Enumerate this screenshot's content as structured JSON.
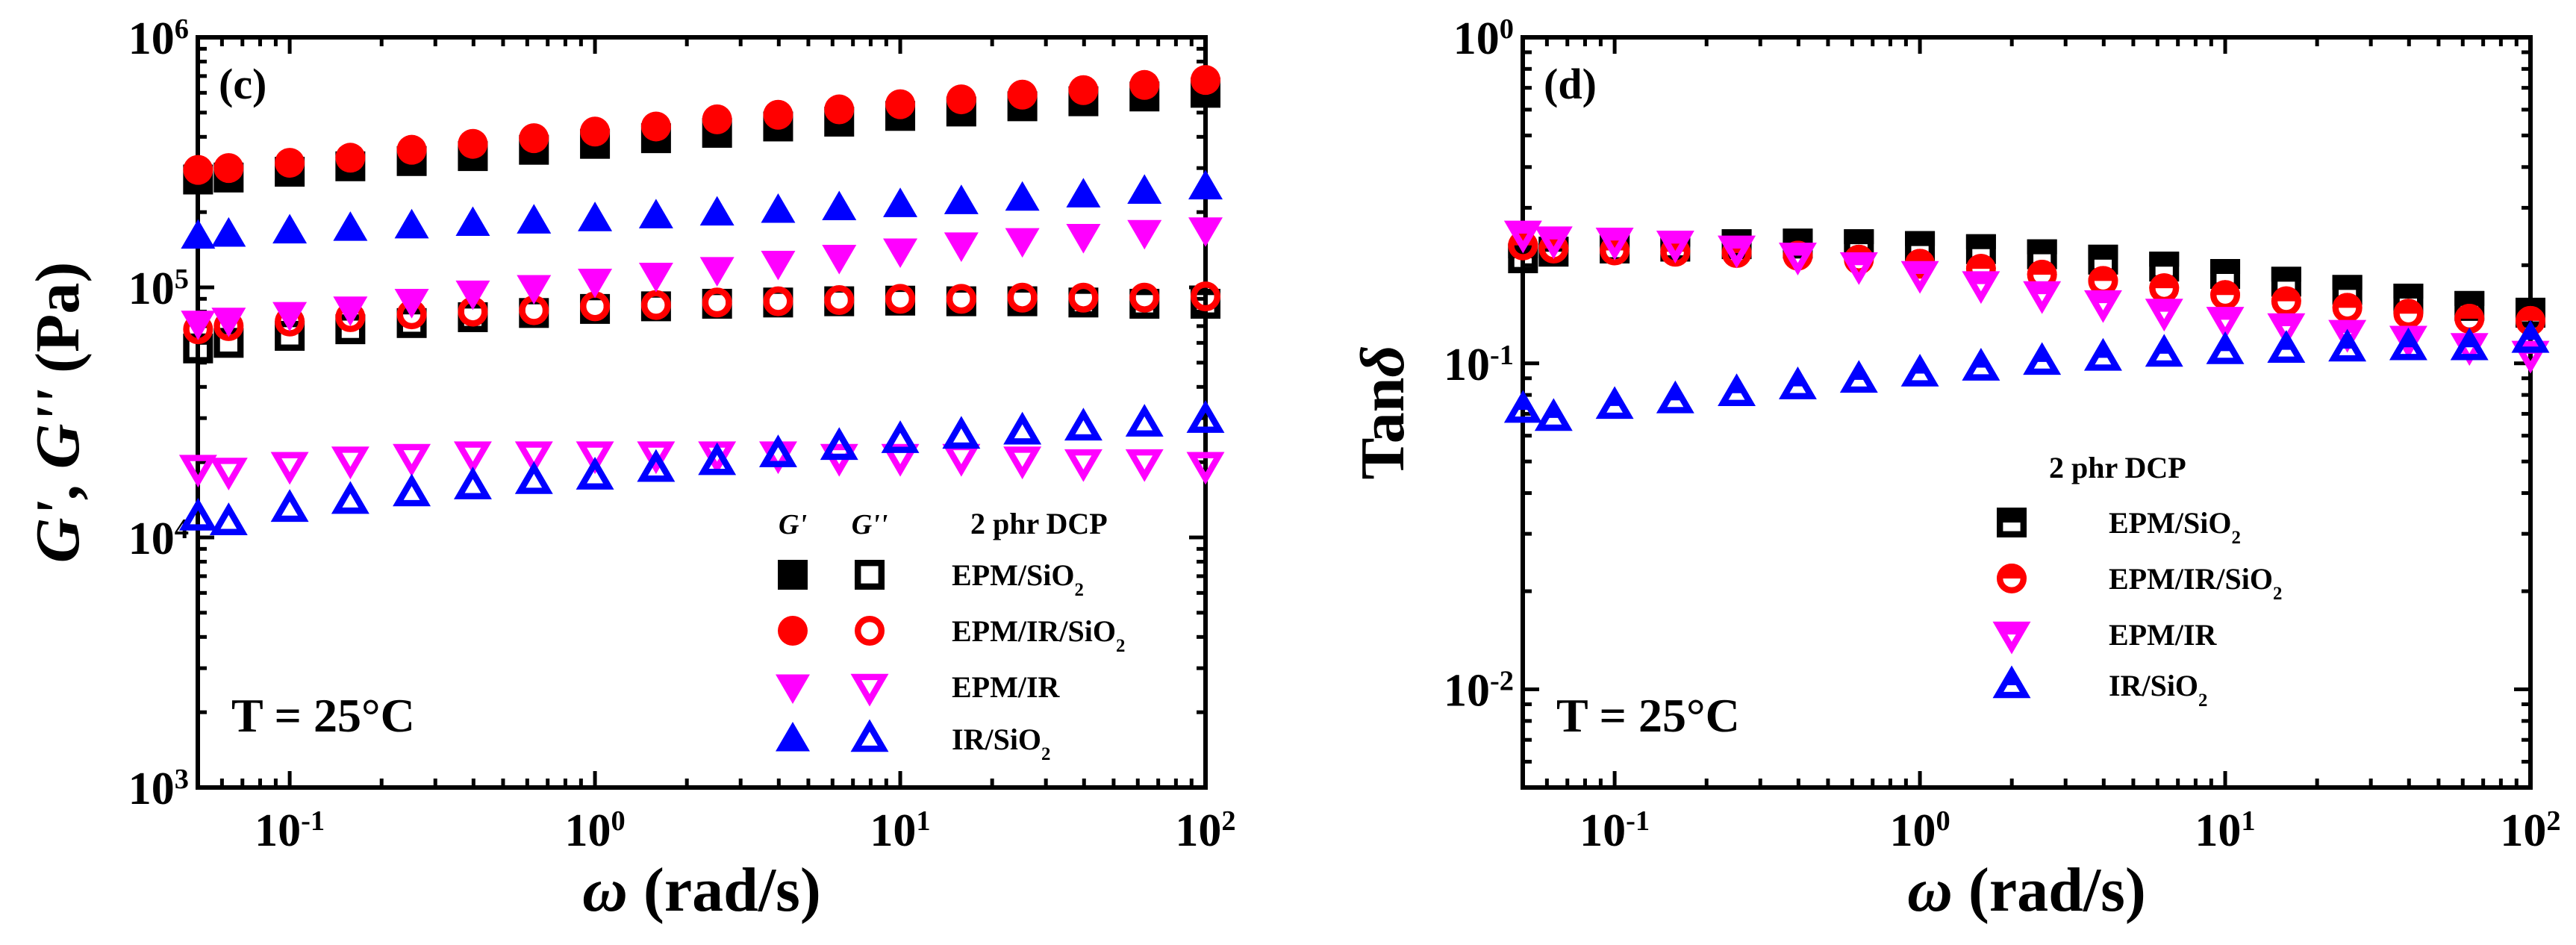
{
  "chart_data": [
    {
      "type": "scatter",
      "panel_label": "(c)",
      "xlabel": "ω (rad/s)",
      "ylabel": "G', G'' (Pa)",
      "x_scale": "log",
      "y_scale": "log",
      "xlim": [
        0.05,
        100
      ],
      "ylim": [
        1000,
        1000000
      ],
      "x_ticks": [
        {
          "base": "10",
          "exp": "-1",
          "value": 0.1
        },
        {
          "base": "10",
          "exp": "0",
          "value": 1
        },
        {
          "base": "10",
          "exp": "1",
          "value": 10
        },
        {
          "base": "10",
          "exp": "2",
          "value": 100
        }
      ],
      "y_ticks": [
        {
          "base": "10",
          "exp": "3",
          "value": 1000
        },
        {
          "base": "10",
          "exp": "4",
          "value": 10000
        },
        {
          "base": "10",
          "exp": "5",
          "value": 100000
        },
        {
          "base": "10",
          "exp": "6",
          "value": 1000000
        }
      ],
      "annotation": "T = 25°C",
      "legend": {
        "placement": "bottom-right",
        "col_headers": [
          "G'",
          "G''"
        ],
        "title": "2 phr DCP",
        "entries": [
          {
            "label": "EPM/SiO",
            "sub": "2"
          },
          {
            "label": "EPM/IR/SiO",
            "sub": "2"
          },
          {
            "label": "EPM/IR",
            "sub": ""
          },
          {
            "label": "IR/SiO",
            "sub": "2"
          }
        ]
      },
      "x": [
        0.0501,
        0.0631,
        0.1,
        0.158,
        0.251,
        0.398,
        0.631,
        1,
        1.585,
        2.512,
        3.981,
        6.31,
        10,
        15.85,
        25.12,
        39.81,
        63.1,
        100
      ],
      "series": [
        {
          "name": "EPM/SiO2 G'",
          "marker": "square",
          "fill": "solid",
          "color": "#000000",
          "values": [
            270000,
            275000,
            290000,
            305000,
            320000,
            335000,
            355000,
            375000,
            395000,
            415000,
            440000,
            460000,
            485000,
            505000,
            530000,
            555000,
            580000,
            600000
          ]
        },
        {
          "name": "EPM/SiO2 G''",
          "marker": "square",
          "fill": "open",
          "color": "#000000",
          "values": [
            57000,
            60000,
            64000,
            68000,
            72000,
            76000,
            79000,
            82000,
            84000,
            86000,
            87000,
            88000,
            88500,
            88000,
            88000,
            87000,
            86000,
            86000
          ]
        },
        {
          "name": "EPM/IR/SiO2 G'",
          "marker": "circle",
          "fill": "solid",
          "color": "#ff0000",
          "values": [
            295000,
            300000,
            315000,
            330000,
            355000,
            375000,
            395000,
            420000,
            440000,
            470000,
            490000,
            515000,
            540000,
            565000,
            590000,
            615000,
            645000,
            675000
          ]
        },
        {
          "name": "EPM/IR/SiO2 G''",
          "marker": "circle",
          "fill": "open",
          "color": "#ff0000",
          "values": [
            68000,
            70000,
            73000,
            76000,
            78000,
            80000,
            81000,
            84000,
            85000,
            87000,
            88000,
            89000,
            90000,
            90000,
            91000,
            91000,
            91000,
            92000
          ]
        },
        {
          "name": "EPM/IR G'",
          "marker": "triangle-down",
          "fill": "solid",
          "color": "#ff00ff",
          "values": [
            72000,
            74000,
            78000,
            82000,
            88000,
            95000,
            100000,
            106000,
            112000,
            118000,
            125000,
            132000,
            140000,
            148000,
            154000,
            160000,
            166000,
            170000
          ]
        },
        {
          "name": "EPM/IR G''",
          "marker": "triangle-down",
          "fill": "open",
          "color": "#ff00ff",
          "values": [
            19000,
            18500,
            19500,
            20500,
            21000,
            21500,
            21500,
            21500,
            21500,
            21500,
            21500,
            21000,
            21000,
            21000,
            20500,
            20000,
            20000,
            19500
          ]
        },
        {
          "name": "IR/SiO2 G'",
          "marker": "triangle-up",
          "fill": "solid",
          "color": "#0000ff",
          "values": [
            160000,
            163000,
            168000,
            172000,
            176000,
            180000,
            184000,
            188000,
            193000,
            198000,
            203000,
            208000,
            214000,
            220000,
            227000,
            234000,
            242000,
            252000
          ]
        },
        {
          "name": "IR/SiO2 G''",
          "marker": "triangle-up",
          "fill": "open",
          "color": "#0000ff",
          "values": [
            12000,
            11500,
            13000,
            14000,
            15000,
            16000,
            16800,
            17500,
            18800,
            20000,
            21500,
            23000,
            24500,
            25500,
            26500,
            27500,
            28500,
            29500
          ]
        }
      ]
    },
    {
      "type": "scatter",
      "panel_label": "(d)",
      "xlabel": "ω (rad/s)",
      "ylabel": "Tanδ",
      "x_scale": "log",
      "y_scale": "log",
      "xlim": [
        0.05,
        100
      ],
      "ylim": [
        0.005,
        1
      ],
      "x_ticks": [
        {
          "base": "10",
          "exp": "-1",
          "value": 0.1
        },
        {
          "base": "10",
          "exp": "0",
          "value": 1
        },
        {
          "base": "10",
          "exp": "1",
          "value": 10
        },
        {
          "base": "10",
          "exp": "2",
          "value": 100
        }
      ],
      "y_ticks": [
        {
          "label": "10",
          "exp": "-2",
          "value": 0.01
        },
        {
          "label": "10",
          "exp": "-1",
          "value": 0.1
        },
        {
          "label": "10",
          "exp": "0",
          "value": 1
        }
      ],
      "annotation": "T = 25°C",
      "legend": {
        "placement": "bottom-right",
        "title": "2 phr DCP",
        "entries": [
          {
            "label": "EPM/SiO",
            "sub": "2"
          },
          {
            "label": "EPM/IR/SiO",
            "sub": "2"
          },
          {
            "label": "EPM/IR",
            "sub": ""
          },
          {
            "label": "IR/SiO",
            "sub": "2"
          }
        ]
      },
      "x": [
        0.0501,
        0.0631,
        0.1,
        0.158,
        0.251,
        0.398,
        0.631,
        1,
        1.585,
        2.512,
        3.981,
        6.31,
        10,
        15.85,
        25.12,
        39.81,
        63.1,
        100
      ],
      "series": [
        {
          "name": "EPM/SiO2",
          "marker": "square",
          "fill": "half",
          "color": "#000000",
          "values": [
            0.21,
            0.22,
            0.225,
            0.228,
            0.232,
            0.233,
            0.232,
            0.229,
            0.224,
            0.216,
            0.208,
            0.198,
            0.188,
            0.178,
            0.168,
            0.158,
            0.15,
            0.143
          ]
        },
        {
          "name": "EPM/IR/SiO2",
          "marker": "circle",
          "fill": "half",
          "color": "#ff0000",
          "values": [
            0.23,
            0.225,
            0.222,
            0.22,
            0.218,
            0.214,
            0.208,
            0.202,
            0.195,
            0.187,
            0.179,
            0.17,
            0.162,
            0.155,
            0.148,
            0.142,
            0.137,
            0.135
          ]
        },
        {
          "name": "EPM/IR",
          "marker": "triangle-down",
          "fill": "half",
          "color": "#ff00ff",
          "values": [
            0.25,
            0.24,
            0.238,
            0.233,
            0.225,
            0.214,
            0.2,
            0.188,
            0.175,
            0.163,
            0.153,
            0.144,
            0.136,
            0.13,
            0.124,
            0.119,
            0.113,
            0.107
          ]
        },
        {
          "name": "IR/SiO2",
          "marker": "triangle-up",
          "fill": "half",
          "color": "#0000ff",
          "values": [
            0.072,
            0.068,
            0.074,
            0.077,
            0.081,
            0.085,
            0.089,
            0.093,
            0.097,
            0.101,
            0.104,
            0.107,
            0.109,
            0.11,
            0.111,
            0.112,
            0.112,
            0.118
          ]
        }
      ]
    }
  ]
}
